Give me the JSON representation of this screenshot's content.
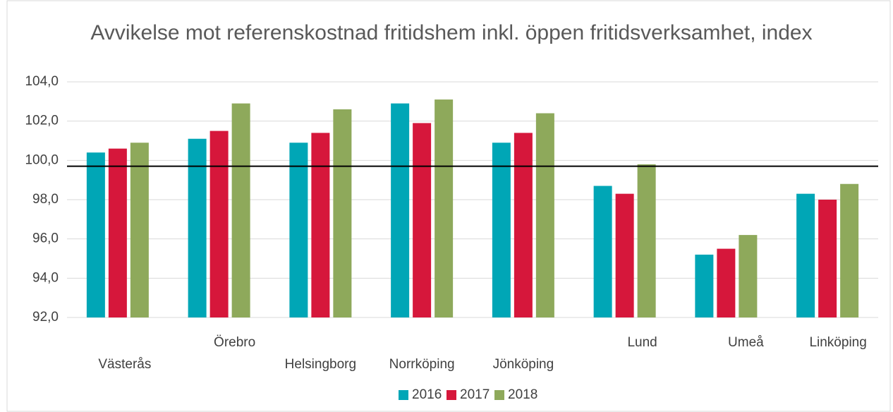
{
  "chart_data": {
    "type": "bar",
    "title": "Avvikelse mot referenskostnad fritidshem inkl. öppen fritidsverksamhet, index",
    "categories": [
      "Västerås",
      "Örebro",
      "Helsingborg",
      "Norrköping",
      "Jönköping",
      "Lund",
      "Umeå",
      "Linköping"
    ],
    "series": [
      {
        "name": "2016",
        "color": "#00a6b6",
        "values": [
          100.4,
          101.1,
          100.9,
          102.9,
          100.9,
          98.7,
          95.2,
          98.3
        ]
      },
      {
        "name": "2017",
        "color": "#d6173b",
        "values": [
          100.6,
          101.5,
          101.4,
          101.9,
          101.4,
          98.3,
          95.5,
          98.0
        ]
      },
      {
        "name": "2018",
        "color": "#8ea95b",
        "values": [
          100.9,
          102.9,
          102.6,
          103.1,
          102.4,
          99.8,
          96.2,
          98.8
        ]
      }
    ],
    "reference_line": 99.7,
    "ylim": [
      92,
      104
    ],
    "yticks": [
      {
        "value": 92,
        "label": "92,0"
      },
      {
        "value": 94,
        "label": "94,0"
      },
      {
        "value": 96,
        "label": "96,0"
      },
      {
        "value": 98,
        "label": "98,0"
      },
      {
        "value": 100,
        "label": "100,0"
      },
      {
        "value": 102,
        "label": "102,0"
      },
      {
        "value": 104,
        "label": "104,0"
      }
    ],
    "grid": true,
    "legend": "bottom"
  }
}
